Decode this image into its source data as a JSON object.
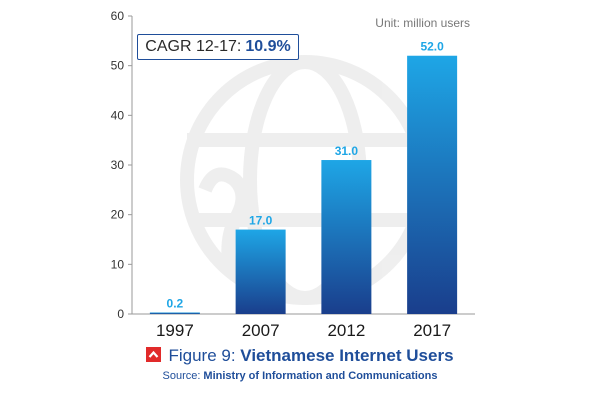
{
  "chart_data": {
    "type": "bar",
    "categories": [
      "1997",
      "2007",
      "2012",
      "2017"
    ],
    "values": [
      0.2,
      17.0,
      31.0,
      52.0
    ],
    "value_labels": [
      "0.2",
      "17.0",
      "31.0",
      "52.0"
    ],
    "ylim": [
      0,
      60
    ],
    "yticks": [
      0,
      10,
      20,
      30,
      40,
      50,
      60
    ],
    "unit": "Unit: million users",
    "grid": false,
    "colors": {
      "bar_top": "#1ea6e6",
      "bar_bottom": "#1a3e8c",
      "label": "#1ea6e6"
    }
  },
  "cagr": {
    "label": "CAGR 12-17:",
    "value": "10.9%"
  },
  "caption": {
    "prefix": "Figure 9:",
    "title": "Vietnamese Internet Users"
  },
  "source": {
    "prefix": "Source:",
    "value": "Ministry of Information and Communications"
  }
}
